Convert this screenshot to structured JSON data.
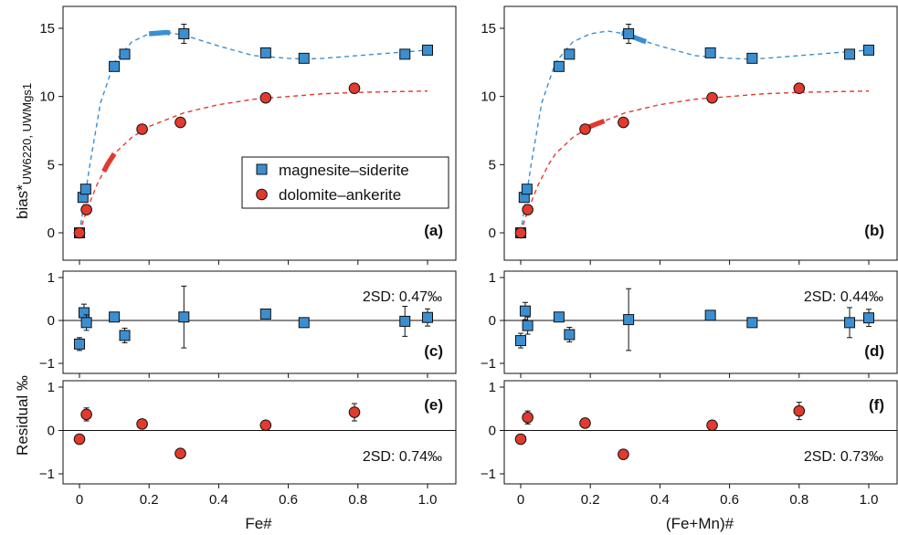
{
  "chart_data": [
    {
      "panel": "(a)",
      "type": "scatter",
      "xlabel": "",
      "ylabel": "bias*",
      "ylabel_subscript": "UW6220, UWMgs1",
      "xlim": [
        0,
        1
      ],
      "ylim": [
        0,
        15
      ],
      "yticks": [
        "0",
        "5",
        "10",
        "15"
      ],
      "legend": {
        "position": "center-right",
        "entries": [
          "magnesite–siderite",
          "dolomite–ankerite"
        ]
      },
      "series": [
        {
          "name": "magnesite–siderite",
          "marker": "square",
          "color": "#3b8fd0",
          "x": [
            0.0,
            0.01,
            0.018,
            0.1,
            0.13,
            0.3,
            0.535,
            0.645,
            0.935,
            1.0
          ],
          "y": [
            0.0,
            2.6,
            3.2,
            12.2,
            13.1,
            14.6,
            13.2,
            12.8,
            13.1,
            13.4
          ],
          "err": [
            0,
            0,
            0,
            0,
            0,
            0.7,
            0,
            0,
            0,
            0
          ]
        },
        {
          "name": "dolomite–ankerite",
          "marker": "circle",
          "color": "#e23a2e",
          "x": [
            0.0,
            0.02,
            0.18,
            0.29,
            0.535,
            0.79
          ],
          "y": [
            0.0,
            1.7,
            7.6,
            8.1,
            9.9,
            10.6
          ],
          "err": [
            0,
            0,
            0,
            0,
            0,
            0
          ]
        }
      ],
      "fits": [
        {
          "series": "magnesite–siderite",
          "color": "#3b8fd0",
          "style": "dashed",
          "x": [
            0,
            0.03,
            0.06,
            0.1,
            0.15,
            0.2,
            0.25,
            0.3,
            0.35,
            0.4,
            0.5,
            0.6,
            0.65,
            0.7,
            0.8,
            0.9,
            1.0
          ],
          "y": [
            0,
            5.0,
            9.5,
            12.5,
            14.0,
            14.6,
            14.7,
            14.5,
            14.1,
            13.7,
            13.0,
            12.8,
            12.75,
            12.8,
            13.0,
            13.2,
            13.4
          ],
          "highlight": [
            0.2,
            0.26
          ]
        },
        {
          "series": "dolomite–ankerite",
          "color": "#e23a2e",
          "style": "dashed",
          "x": [
            0,
            0.02,
            0.05,
            0.08,
            0.1,
            0.15,
            0.2,
            0.3,
            0.4,
            0.5,
            0.6,
            0.7,
            0.8,
            0.9,
            1.0
          ],
          "y": [
            0,
            1.6,
            3.5,
            5.0,
            5.8,
            7.0,
            7.8,
            8.8,
            9.4,
            9.8,
            10.0,
            10.2,
            10.3,
            10.35,
            10.4
          ],
          "highlight": [
            0.07,
            0.1
          ]
        }
      ]
    },
    {
      "panel": "(b)",
      "type": "scatter",
      "xlim": [
        0,
        1
      ],
      "ylim": [
        0,
        15
      ],
      "yticks": [
        "0",
        "5",
        "10",
        "15"
      ],
      "series": [
        {
          "name": "magnesite–siderite",
          "marker": "square",
          "color": "#3b8fd0",
          "x": [
            0.0,
            0.01,
            0.018,
            0.11,
            0.14,
            0.31,
            0.545,
            0.665,
            0.945,
            1.0
          ],
          "y": [
            0.0,
            2.6,
            3.2,
            12.2,
            13.1,
            14.6,
            13.2,
            12.8,
            13.1,
            13.4
          ],
          "err": [
            0,
            0,
            0,
            0,
            0,
            0.7,
            0,
            0,
            0,
            0
          ]
        },
        {
          "name": "dolomite–ankerite",
          "marker": "circle",
          "color": "#e23a2e",
          "x": [
            0.0,
            0.02,
            0.185,
            0.295,
            0.55,
            0.8
          ],
          "y": [
            0.0,
            1.7,
            7.6,
            8.1,
            9.9,
            10.6
          ],
          "err": [
            0,
            0,
            0,
            0,
            0,
            0
          ]
        }
      ],
      "fits": [
        {
          "series": "magnesite–siderite",
          "color": "#3b8fd0",
          "style": "dashed",
          "x": [
            0,
            0.03,
            0.06,
            0.1,
            0.15,
            0.2,
            0.25,
            0.3,
            0.35,
            0.4,
            0.5,
            0.6,
            0.65,
            0.7,
            0.8,
            0.9,
            1.0
          ],
          "y": [
            0,
            5.0,
            9.5,
            12.5,
            14.0,
            14.6,
            14.8,
            14.6,
            14.1,
            13.7,
            13.0,
            12.8,
            12.75,
            12.8,
            13.0,
            13.2,
            13.4
          ],
          "highlight": [
            0.29,
            0.36
          ]
        },
        {
          "series": "dolomite–ankerite",
          "color": "#e23a2e",
          "style": "dashed",
          "x": [
            0,
            0.02,
            0.05,
            0.08,
            0.1,
            0.15,
            0.2,
            0.3,
            0.4,
            0.5,
            0.6,
            0.7,
            0.8,
            0.9,
            1.0
          ],
          "y": [
            0,
            1.6,
            3.5,
            5.0,
            5.8,
            7.0,
            7.8,
            8.8,
            9.4,
            9.8,
            10.0,
            10.2,
            10.3,
            10.35,
            10.4
          ],
          "highlight": [
            0.18,
            0.24
          ]
        }
      ]
    },
    {
      "panel": "(c)",
      "type": "scatter",
      "ylim": [
        -1,
        1
      ],
      "yticks": [
        "−1",
        "0",
        "1"
      ],
      "annotation": "2SD: 0.47‰",
      "series": [
        {
          "name": "magnesite–siderite",
          "marker": "square",
          "color": "#3b8fd0",
          "x": [
            0.0,
            0.013,
            0.02,
            0.1,
            0.13,
            0.3,
            0.535,
            0.645,
            0.935,
            1.0
          ],
          "y": [
            -0.55,
            0.18,
            -0.05,
            0.08,
            -0.35,
            0.08,
            0.15,
            -0.05,
            -0.02,
            0.07
          ],
          "err": [
            0.15,
            0.2,
            0.18,
            0,
            0.17,
            0.72,
            0.1,
            0,
            0.35,
            0.2
          ]
        }
      ]
    },
    {
      "panel": "(d)",
      "type": "scatter",
      "ylim": [
        -1,
        1
      ],
      "yticks": [
        "−1",
        "0",
        "1"
      ],
      "annotation": "2SD: 0.44‰",
      "series": [
        {
          "name": "magnesite–siderite",
          "marker": "square",
          "color": "#3b8fd0",
          "x": [
            0.0,
            0.013,
            0.02,
            0.11,
            0.14,
            0.31,
            0.545,
            0.665,
            0.945,
            1.0
          ],
          "y": [
            -0.47,
            0.22,
            -0.12,
            0.08,
            -0.33,
            0.02,
            0.12,
            -0.05,
            -0.05,
            0.06
          ],
          "err": [
            0.17,
            0.2,
            0.2,
            0,
            0.17,
            0.72,
            0.1,
            0,
            0.35,
            0.2
          ]
        }
      ]
    },
    {
      "panel": "(e)",
      "type": "scatter",
      "xlabel": "Fe#",
      "ylim": [
        -1,
        1
      ],
      "yticks": [
        "−1",
        "0",
        "1"
      ],
      "xticks": [
        "0",
        "0.2",
        "0.4",
        "0.6",
        "0.8",
        "1.0"
      ],
      "annotation": "2SD: 0.74‰",
      "series": [
        {
          "name": "dolomite–ankerite",
          "marker": "circle",
          "color": "#e23a2e",
          "x": [
            0.0,
            0.02,
            0.18,
            0.29,
            0.535,
            0.79
          ],
          "y": [
            -0.2,
            0.37,
            0.15,
            -0.53,
            0.12,
            0.42
          ],
          "err": [
            0,
            0.15,
            0,
            0,
            0.1,
            0.2
          ]
        }
      ]
    },
    {
      "panel": "(f)",
      "type": "scatter",
      "xlabel": "(Fe+Mn)#",
      "ylim": [
        -1,
        1
      ],
      "yticks": [
        "−1",
        "0",
        "1"
      ],
      "xticks": [
        "0",
        "0.2",
        "0.4",
        "0.6",
        "0.8",
        "1.0"
      ],
      "annotation": "2SD: 0.73‰",
      "series": [
        {
          "name": "dolomite–ankerite",
          "marker": "circle",
          "color": "#e23a2e",
          "x": [
            0.0,
            0.02,
            0.185,
            0.295,
            0.55,
            0.8
          ],
          "y": [
            -0.2,
            0.3,
            0.17,
            -0.55,
            0.12,
            0.45
          ],
          "err": [
            0,
            0.15,
            0,
            0,
            0.1,
            0.2
          ]
        }
      ]
    }
  ],
  "shared": {
    "residual_ylabel": "Residual ‰",
    "colors": {
      "square": "#3b8fd0",
      "circle": "#e23a2e",
      "outline": "#111111"
    }
  }
}
